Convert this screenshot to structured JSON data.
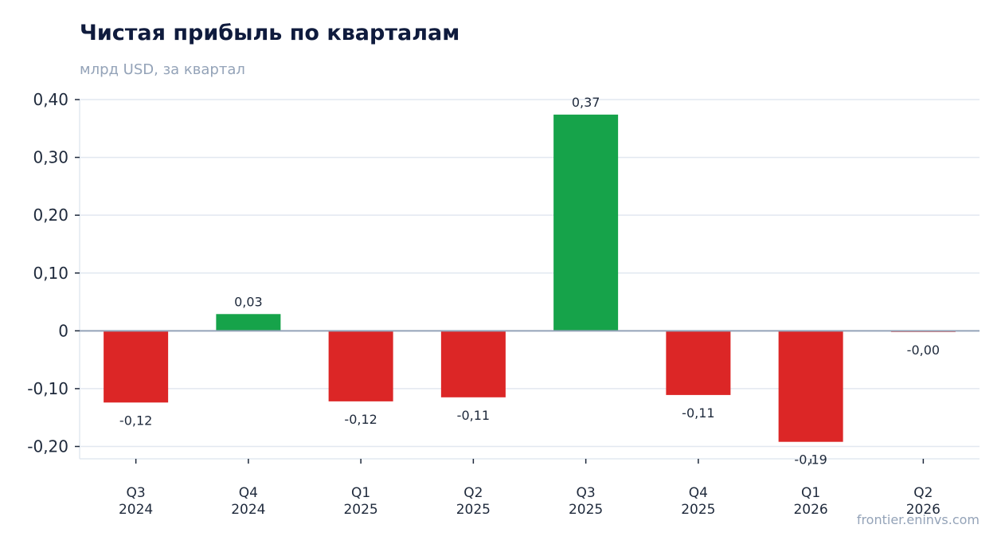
{
  "header": {
    "title": "Чистая прибыль по кварталам",
    "subtitle": "млрд USD, за квартал"
  },
  "footer": {
    "source": "frontier.eninvs.com"
  },
  "chart_data": {
    "type": "bar",
    "categories": [
      [
        "Q3",
        "2024"
      ],
      [
        "Q4",
        "2024"
      ],
      [
        "Q1",
        "2025"
      ],
      [
        "Q2",
        "2025"
      ],
      [
        "Q3",
        "2025"
      ],
      [
        "Q4",
        "2025"
      ],
      [
        "Q1",
        "2026"
      ],
      [
        "Q2",
        "2026"
      ]
    ],
    "values": [
      -0.124,
      0.029,
      -0.122,
      -0.115,
      0.374,
      -0.111,
      -0.192,
      -0.002
    ],
    "data_labels": [
      "-0,12",
      "0,03",
      "-0,12",
      "-0,11",
      "0,37",
      "-0,11",
      "-0,19",
      "-0,00"
    ],
    "ylim": [
      -0.22,
      0.4
    ],
    "yticks": [
      0.4,
      0.3,
      0.2,
      0.1,
      0,
      -0.1,
      -0.2
    ],
    "ytick_labels": [
      "0,40",
      "0,30",
      "0,20",
      "0,10",
      "0",
      "-0,10",
      "-0,20"
    ],
    "grid": true,
    "colors": {
      "positive": "#16a34a",
      "negative": "#dc2626",
      "grid": "#e2e8f0",
      "zero_line": "#94a3b8",
      "axis": "#1e293b"
    }
  }
}
